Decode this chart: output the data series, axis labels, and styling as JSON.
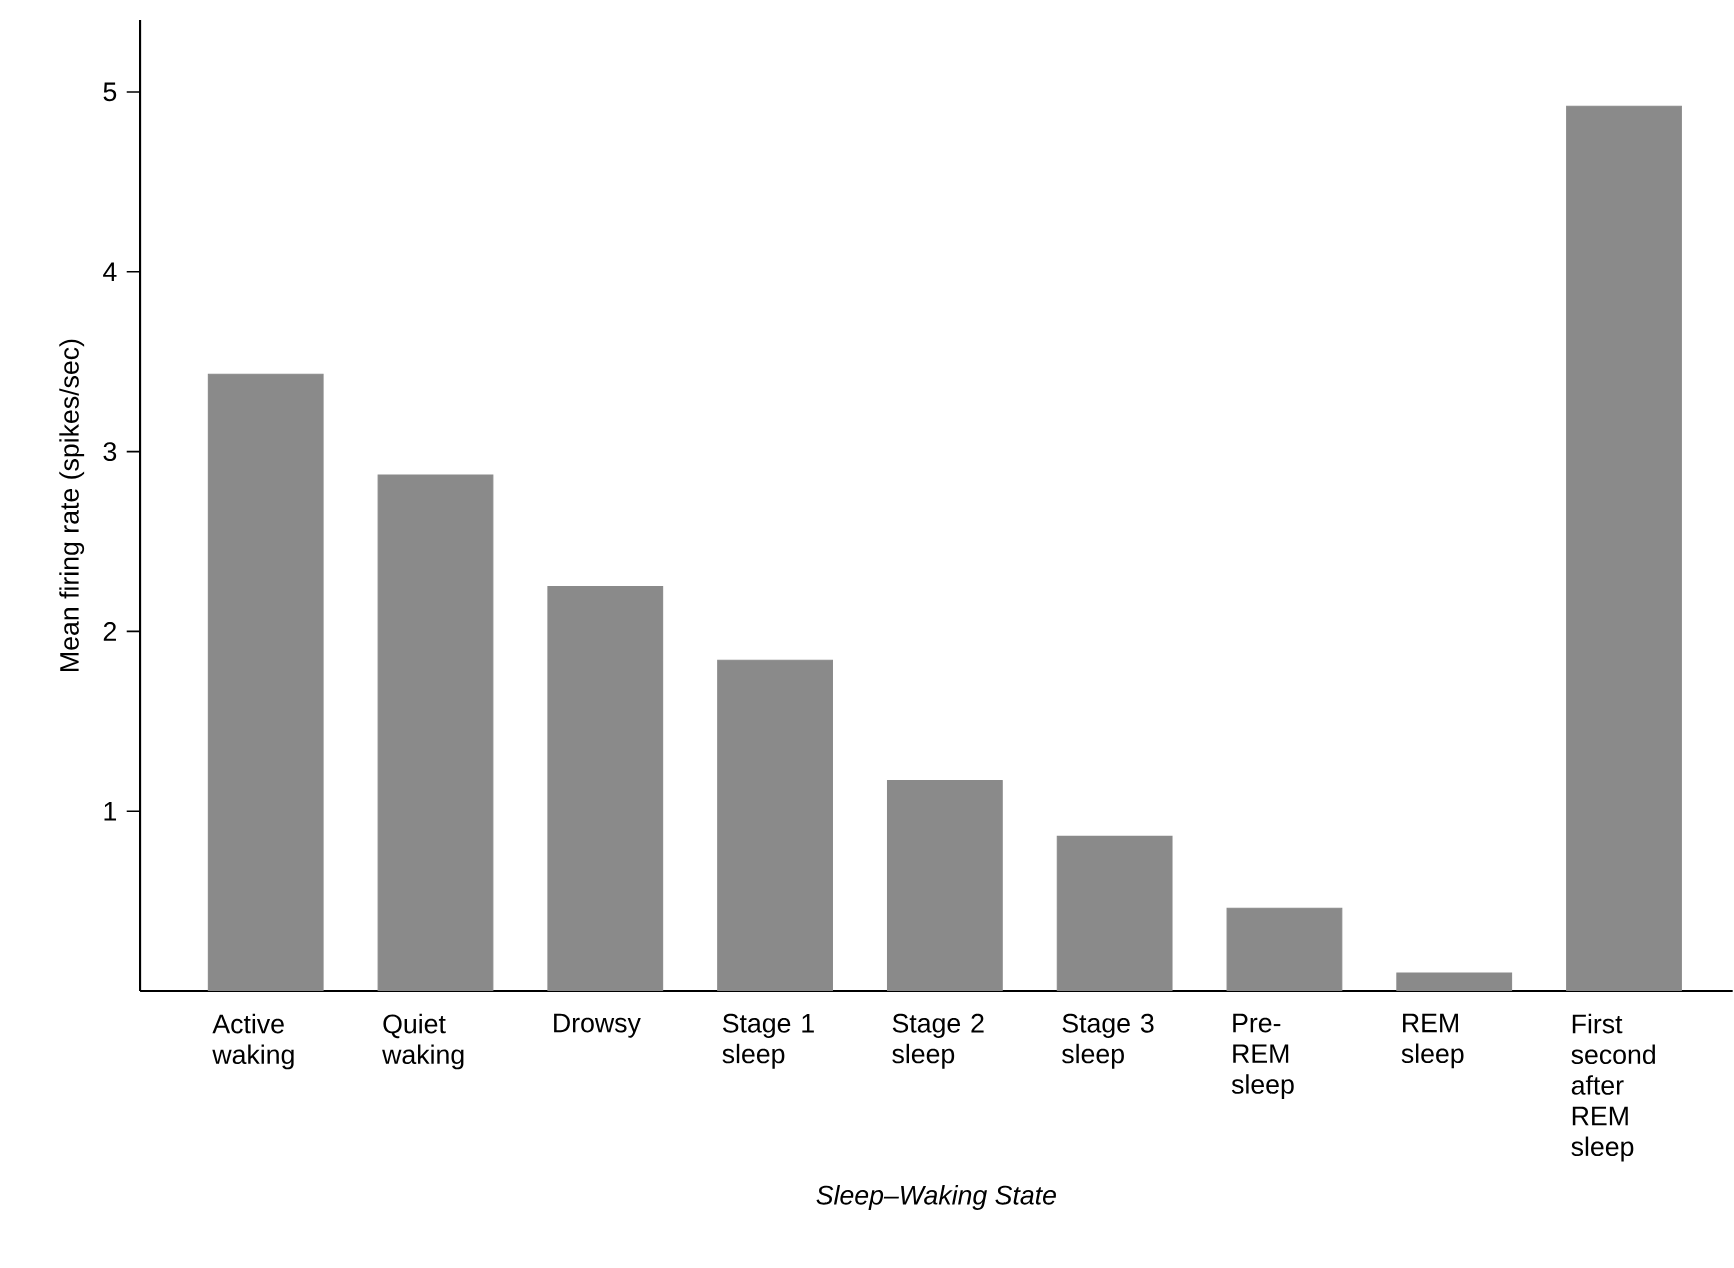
{
  "chart_data": {
    "type": "bar",
    "xlabel": "Sleep–Waking State",
    "ylabel": "Mean firing rate (spikes/sec)",
    "categories": [
      "Active waking",
      "Quiet waking",
      "Drowsy",
      "Stage 1 sleep",
      "Stage 2 sleep",
      "Stage 3 sleep",
      "Pre-REM sleep",
      "REM sleep",
      "First second after REM sleep"
    ],
    "values": [
      3.43,
      2.87,
      2.25,
      1.84,
      1.17,
      0.86,
      0.46,
      0.1,
      4.92
    ],
    "color": "#8a8a8a",
    "ylim": [
      0,
      5.4
    ],
    "yticks": [
      1,
      2,
      3,
      4,
      5
    ],
    "grid": false
  }
}
